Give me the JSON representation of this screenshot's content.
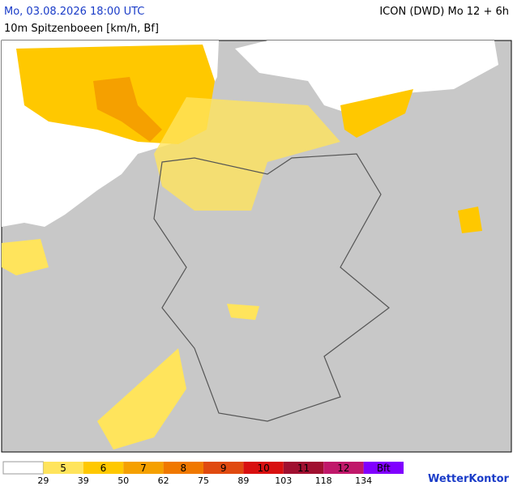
{
  "header": {
    "datetime": "Mo, 03.08.2026 18:00 UTC",
    "model": "ICON (DWD) Mo 12 + 6h",
    "parameter": "10m Spitzenboeen [km/h, Bf]"
  },
  "legend": {
    "items": [
      {
        "label": "5",
        "color": "#ffe45c"
      },
      {
        "label": "6",
        "color": "#ffc800"
      },
      {
        "label": "7",
        "color": "#f5a000"
      },
      {
        "label": "8",
        "color": "#f07800"
      },
      {
        "label": "9",
        "color": "#e04a10"
      },
      {
        "label": "10",
        "color": "#d81010"
      },
      {
        "label": "11",
        "color": "#a01030"
      },
      {
        "label": "12",
        "color": "#c0186a"
      },
      {
        "label": "Bft",
        "color": "#8000ff"
      }
    ],
    "thresholds": [
      29,
      39,
      50,
      62,
      75,
      89,
      103,
      118,
      134
    ]
  },
  "brand": "WetterKontor"
}
